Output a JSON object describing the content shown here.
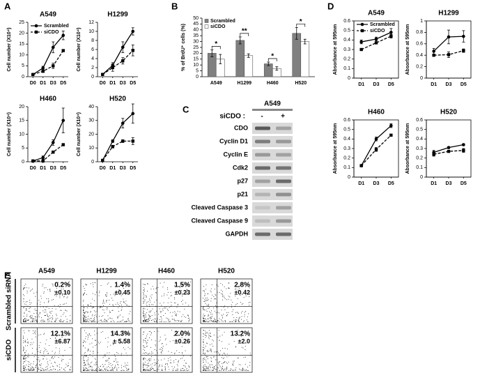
{
  "panel_labels": [
    "A",
    "B",
    "C",
    "D",
    "E"
  ],
  "chart_data": [
    {
      "type": "line",
      "title": "A549",
      "y_label": "Cell number (X10⁴)",
      "categories": [
        "D0",
        "D1",
        "D3",
        "D5"
      ],
      "ylim": [
        0,
        25
      ],
      "yticks": [
        0,
        5,
        10,
        15,
        20,
        25
      ],
      "legend": "upper left",
      "series": [
        {
          "name": "Scrambled",
          "color": "#000000",
          "marker": "circle",
          "linestyle": "solid",
          "values": [
            1,
            4,
            13.5,
            19
          ],
          "errors": [
            0.3,
            0.8,
            2.5,
            2
          ]
        },
        {
          "name": "siCDO",
          "color": "#000000",
          "marker": "square",
          "linestyle": "dashed",
          "values": [
            1,
            2.5,
            5,
            12
          ],
          "errors": [
            0.3,
            0.5,
            1.2,
            0.5
          ]
        }
      ]
    },
    {
      "type": "line",
      "title": "H1299",
      "y_label": "Cell number (X10⁴)",
      "categories": [
        "D0",
        "D1",
        "D3",
        "D5"
      ],
      "ylim": [
        0,
        12
      ],
      "yticks": [
        0,
        2,
        4,
        6,
        8,
        10,
        12
      ],
      "series": [
        {
          "color": "#000000",
          "marker": "circle",
          "linestyle": "solid",
          "values": [
            0.5,
            2.5,
            6.5,
            10
          ],
          "errors": [
            0.1,
            0.6,
            1.2,
            0.8
          ]
        },
        {
          "color": "#000000",
          "marker": "square",
          "linestyle": "dashed",
          "values": [
            0.5,
            2,
            3.5,
            5.8
          ],
          "errors": [
            0.1,
            0.8,
            0.7,
            1.2
          ]
        }
      ]
    },
    {
      "type": "line",
      "title": "H460",
      "y_label": "Cell number (X10⁴)",
      "categories": [
        "D0",
        "D1",
        "D3",
        "D5"
      ],
      "ylim": [
        0,
        20
      ],
      "yticks": [
        0,
        5,
        10,
        15,
        20
      ],
      "series": [
        {
          "color": "#000000",
          "marker": "circle",
          "linestyle": "solid",
          "values": [
            0.3,
            1.5,
            7,
            15
          ],
          "errors": [
            0.1,
            0.6,
            1,
            4.5
          ]
        },
        {
          "color": "#000000",
          "marker": "square",
          "linestyle": "dashed",
          "values": [
            0.3,
            0.3,
            3.5,
            6.2
          ],
          "errors": [
            0.1,
            0.1,
            0.3,
            0.4
          ]
        }
      ]
    },
    {
      "type": "line",
      "title": "H520",
      "y_label": "Cell number (X10⁴)",
      "categories": [
        "D0",
        "D1",
        "D3",
        "D5"
      ],
      "ylim": [
        0,
        40
      ],
      "yticks": [
        0,
        10,
        20,
        30,
        40
      ],
      "series": [
        {
          "color": "#000000",
          "marker": "circle",
          "linestyle": "solid",
          "values": [
            1,
            15,
            28,
            35
          ],
          "errors": [
            0.3,
            1,
            3.5,
            7
          ]
        },
        {
          "color": "#000000",
          "marker": "square",
          "linestyle": "dashed",
          "values": [
            1,
            11,
            15,
            15
          ],
          "errors": [
            0.3,
            1,
            1,
            2.5
          ]
        }
      ]
    },
    {
      "type": "bar",
      "y_label": "% of BrdU⁺ cells (%)",
      "categories": [
        "A549",
        "H1299",
        "H460",
        "H520"
      ],
      "ylim": [
        0,
        50
      ],
      "yticks": [
        0,
        5,
        10,
        15,
        20,
        25,
        30,
        35,
        40,
        45,
        50
      ],
      "legend": "upper left",
      "annotations": [
        "*",
        "**",
        "*",
        "*"
      ],
      "series": [
        {
          "name": "Scrambled",
          "color": "#808080",
          "values": [
            20,
            31,
            11,
            37
          ],
          "errors": [
            3,
            3,
            1.5,
            5
          ]
        },
        {
          "name": "siCDO",
          "color": "#ffffff",
          "values": [
            15,
            18,
            7,
            30
          ],
          "errors": [
            4,
            1.5,
            1.5,
            2
          ]
        }
      ]
    },
    {
      "type": "line",
      "title": "A549",
      "y_label": "Absorbance at 595nm",
      "categories": [
        "D1",
        "D3",
        "D5"
      ],
      "box": true,
      "ylim": [
        0,
        0.6
      ],
      "yticks": [
        0,
        0.1,
        0.2,
        0.3,
        0.4,
        0.5,
        0.6
      ],
      "legend": "upper left",
      "series": [
        {
          "name": "Scrambled",
          "color": "#000000",
          "marker": "circle",
          "linestyle": "solid",
          "values": [
            0.38,
            0.41,
            0.48
          ],
          "errors": [
            0.02,
            0.02,
            0.04
          ]
        },
        {
          "name": "siCDO",
          "color": "#000000",
          "marker": "square",
          "linestyle": "dashed",
          "values": [
            0.3,
            0.37,
            0.44
          ],
          "errors": [
            0.01,
            0.01,
            0.02
          ]
        }
      ]
    },
    {
      "type": "line",
      "title": "H1299",
      "y_label": "Absorbance at 595nm",
      "categories": [
        "D1",
        "D3",
        "D5"
      ],
      "box": true,
      "ylim": [
        0,
        1
      ],
      "yticks": [
        0,
        0.2,
        0.4,
        0.6,
        0.8,
        1
      ],
      "series": [
        {
          "color": "#000000",
          "marker": "circle",
          "linestyle": "solid",
          "values": [
            0.47,
            0.72,
            0.73
          ],
          "errors": [
            0.05,
            0.12,
            0.1
          ]
        },
        {
          "color": "#000000",
          "marker": "square",
          "linestyle": "dashed",
          "values": [
            0.4,
            0.41,
            0.48
          ],
          "errors": [
            0.01,
            0.05,
            0.03
          ]
        }
      ]
    },
    {
      "type": "line",
      "title": "H460",
      "y_label": "Absorbance at 595nm",
      "categories": [
        "D1",
        "D3",
        "D5"
      ],
      "box": true,
      "ylim": [
        0,
        0.6
      ],
      "yticks": [
        0,
        0.1,
        0.2,
        0.3,
        0.4,
        0.5,
        0.6
      ],
      "series": [
        {
          "color": "#000000",
          "marker": "circle",
          "linestyle": "solid",
          "values": [
            0.12,
            0.4,
            0.54
          ],
          "errors": [
            0.01,
            0.02,
            0.02
          ]
        },
        {
          "color": "#000000",
          "marker": "square",
          "linestyle": "dashed",
          "values": [
            0.12,
            0.29,
            0.44
          ],
          "errors": [
            0.01,
            0.02,
            0.01
          ]
        }
      ]
    },
    {
      "type": "line",
      "title": "H520",
      "y_label": "Absorbance at 595nm",
      "categories": [
        "D1",
        "D3",
        "D5"
      ],
      "box": true,
      "ylim": [
        0,
        0.6
      ],
      "yticks": [
        0,
        0.1,
        0.2,
        0.3,
        0.4,
        0.5,
        0.6
      ],
      "series": [
        {
          "color": "#000000",
          "marker": "circle",
          "linestyle": "solid",
          "values": [
            0.26,
            0.31,
            0.34
          ],
          "errors": [
            0.02,
            0.01,
            0.01
          ]
        },
        {
          "color": "#000000",
          "marker": "square",
          "linestyle": "dashed",
          "values": [
            0.24,
            0.27,
            0.28
          ],
          "errors": [
            0.02,
            0.01,
            0.02
          ]
        }
      ]
    }
  ],
  "blot": {
    "title": "A549",
    "treatment_label": "siCDO :",
    "lanes": [
      "-",
      "+"
    ],
    "proteins": [
      "CDO",
      "Cyclin D1",
      "Cyclin E",
      "Cdk2",
      "p27",
      "p21",
      "Cleaved Caspase 3",
      "Cleaved Caspase 9",
      "GAPDH"
    ]
  },
  "flow": {
    "columns": [
      "A549",
      "H1299",
      "H460",
      "H520"
    ],
    "rows": [
      "Scrambled siRNA",
      "siCDO"
    ],
    "cells": [
      [
        {
          "percent": "0.2%",
          "sd": "±0.10"
        },
        {
          "percent": "1.4%",
          "sd": "±0.45"
        },
        {
          "percent": "1.5%",
          "sd": "±0.23"
        },
        {
          "percent": "2.8%",
          "sd": "±0.42"
        }
      ],
      [
        {
          "percent": "12.1%",
          "sd": "±6.87"
        },
        {
          "percent": "14.3%",
          "sd": "± 5.58"
        },
        {
          "percent": "2.0%",
          "sd": "±0.26"
        },
        {
          "percent": "13.2%",
          "sd": "±2.0"
        }
      ]
    ]
  }
}
